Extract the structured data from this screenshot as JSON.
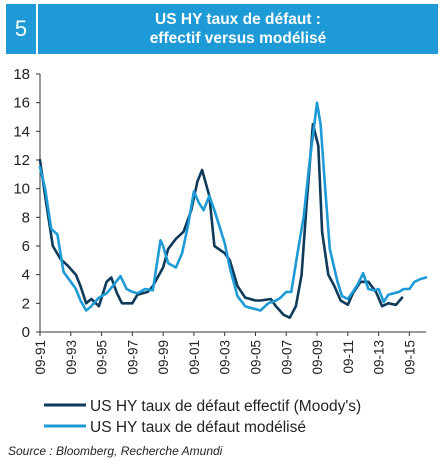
{
  "header": {
    "number": "5",
    "title_line1": "US HY taux de défaut :",
    "title_line2": "effectif versus modélisé"
  },
  "source": "Source : Bloomberg, Recherche Amundi",
  "colors": {
    "accent": "#1e9ad6",
    "effectif": "#0f3a5a",
    "modelise": "#1e9ad6"
  },
  "chart_data": {
    "type": "line",
    "ylim": [
      0,
      18
    ],
    "yticks": [
      0,
      2,
      4,
      6,
      8,
      10,
      12,
      14,
      16,
      18
    ],
    "xlim": [
      1991.67,
      2016.75
    ],
    "xtick_labels": [
      "09-91",
      "09-93",
      "09-95",
      "09-97",
      "09-99",
      "09-01",
      "09-03",
      "09-05",
      "09-07",
      "09-09",
      "09-11",
      "09-13",
      "09-15"
    ],
    "xtick_years": [
      1991.67,
      1993.67,
      1995.67,
      1997.67,
      1999.67,
      2001.67,
      2003.67,
      2005.67,
      2007.67,
      2009.67,
      2011.67,
      2013.67,
      2015.67
    ],
    "grid": false,
    "legend": "bottom",
    "series": [
      {
        "name": "US HY taux de défaut effectif (Moody's)",
        "x": [
          1991.67,
          1992.0,
          1992.5,
          1993.0,
          1993.5,
          1994.0,
          1994.3,
          1994.67,
          1995.0,
          1995.5,
          1996.0,
          1996.3,
          1996.67,
          1997.0,
          1997.67,
          1998.0,
          1998.67,
          1999.0,
          1999.67,
          2000.0,
          2000.5,
          2001.0,
          2001.5,
          2001.9,
          2002.2,
          2002.67,
          2003.0,
          2003.67,
          2004.0,
          2004.5,
          2005.0,
          2005.67,
          2006.0,
          2006.67,
          2007.0,
          2007.5,
          2007.9,
          2008.3,
          2008.67,
          2009.0,
          2009.4,
          2009.75,
          2010.0,
          2010.4,
          2010.8,
          2011.2,
          2011.67,
          2012.0,
          2012.5,
          2013.0,
          2013.5,
          2013.9,
          2014.3,
          2014.8,
          2015.2
        ],
        "y": [
          12,
          9.5,
          6,
          5.1,
          4.6,
          4.0,
          3.2,
          2.0,
          2.3,
          1.8,
          3.5,
          3.8,
          2.7,
          2.0,
          2.0,
          2.6,
          2.8,
          3.2,
          4.5,
          5.8,
          6.5,
          7.0,
          8.5,
          10.5,
          11.3,
          9.5,
          6.0,
          5.5,
          5.0,
          3.2,
          2.4,
          2.2,
          2.2,
          2.3,
          1.8,
          1.2,
          1.0,
          1.8,
          4.0,
          9.0,
          14.5,
          13.0,
          7.0,
          4.0,
          3.2,
          2.2,
          1.9,
          2.7,
          3.5,
          3.5,
          2.8,
          1.8,
          2.0,
          1.9,
          2.4
        ]
      },
      {
        "name": "US HY taux de défaut modélisé",
        "x": [
          1991.67,
          1992.0,
          1992.4,
          1992.8,
          1993.2,
          1993.67,
          1994.0,
          1994.3,
          1994.67,
          1995.0,
          1995.5,
          1996.0,
          1996.4,
          1996.9,
          1997.3,
          1997.67,
          1998.0,
          1998.5,
          1999.0,
          1999.5,
          1999.67,
          2000.0,
          2000.5,
          2000.9,
          2001.3,
          2001.67,
          2002.0,
          2002.3,
          2002.67,
          2003.0,
          2003.67,
          2004.0,
          2004.5,
          2005.0,
          2005.3,
          2005.67,
          2006.0,
          2006.5,
          2007.0,
          2007.3,
          2007.67,
          2008.0,
          2008.4,
          2008.8,
          2009.2,
          2009.5,
          2009.67,
          2009.9,
          2010.2,
          2010.5,
          2011.0,
          2011.3,
          2011.67,
          2012.0,
          2012.3,
          2012.67,
          2013.0,
          2013.4,
          2013.67,
          2014.0,
          2014.3,
          2014.67,
          2015.0,
          2015.3,
          2015.67,
          2016.0,
          2016.4,
          2016.75
        ],
        "y": [
          11.5,
          10,
          7.2,
          6.8,
          4.2,
          3.5,
          3.0,
          2.2,
          1.5,
          1.8,
          2.4,
          2.7,
          3.2,
          3.9,
          3.0,
          2.8,
          2.7,
          3.0,
          2.9,
          6.4,
          6.0,
          4.8,
          4.5,
          5.5,
          7.5,
          9.8,
          9.0,
          8.5,
          9.5,
          8.5,
          6.2,
          4.5,
          2.5,
          1.8,
          1.7,
          1.6,
          1.5,
          2.0,
          2.2,
          2.4,
          2.8,
          2.8,
          5.5,
          8.0,
          12.0,
          14.5,
          16.0,
          14.5,
          10.0,
          5.8,
          3.5,
          2.5,
          2.3,
          2.8,
          3.3,
          4.1,
          3.0,
          2.9,
          3.0,
          2.1,
          2.6,
          2.7,
          2.8,
          3.0,
          3.0,
          3.5,
          3.7,
          3.8
        ]
      }
    ]
  }
}
